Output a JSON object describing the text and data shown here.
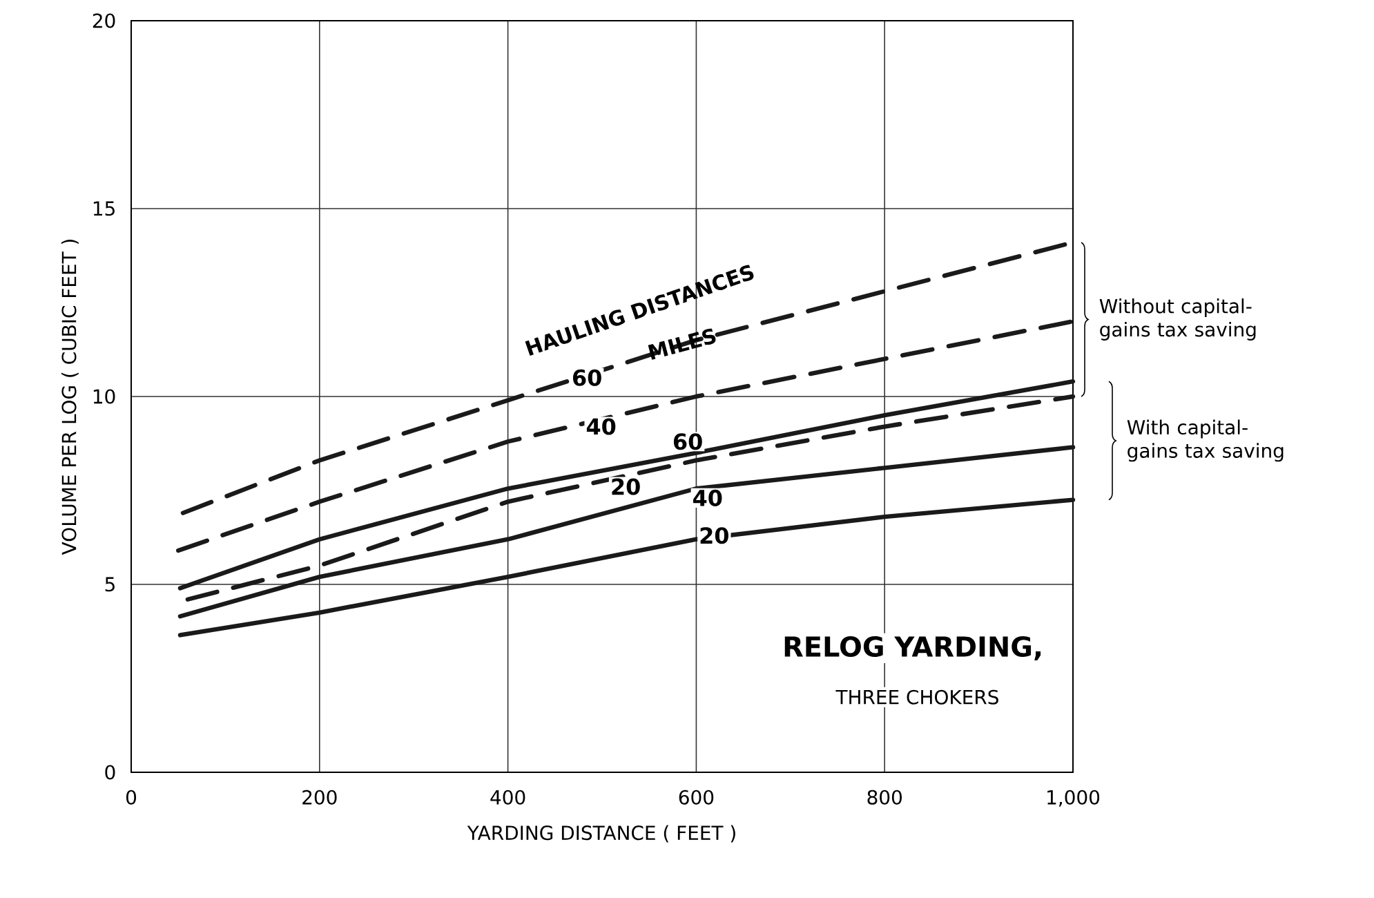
{
  "chart_data": {
    "type": "line",
    "title": "RELOG YARDING,",
    "subtitle": "THREE CHOKERS",
    "xlabel": "YARDING DISTANCE    ( FEET )",
    "ylabel": "VOLUME PER LOG    ( CUBIC FEET )",
    "xlim": [
      0,
      1000
    ],
    "ylim": [
      0,
      20
    ],
    "xticks": [
      0,
      200,
      400,
      600,
      800,
      {
        "value": 1000,
        "label": "1,000"
      }
    ],
    "yticks": [
      0,
      5,
      10,
      15,
      20
    ],
    "grid": true,
    "marker": "none",
    "series": [
      {
        "color": "#1a1a1a",
        "line_style": "dashed",
        "x": [
          55,
          200,
          400,
          600,
          800,
          1000
        ],
        "values": [
          6.9,
          8.3,
          9.9,
          11.5,
          12.8,
          14.1
        ]
      },
      {
        "color": "#1a1a1a",
        "line_style": "dashed",
        "x": [
          50,
          200,
          400,
          600,
          800,
          1000
        ],
        "values": [
          5.9,
          7.2,
          8.8,
          10.0,
          11.0,
          12.0
        ]
      },
      {
        "color": "#1a1a1a",
        "line_style": "dashed",
        "x": [
          60,
          200,
          400,
          600,
          800,
          1000
        ],
        "values": [
          4.6,
          5.5,
          7.2,
          8.3,
          9.2,
          10.0
        ]
      },
      {
        "color": "#1a1a1a",
        "line_style": "solid",
        "x": [
          52,
          200,
          400,
          600,
          800,
          1000
        ],
        "values": [
          4.9,
          6.2,
          7.55,
          8.5,
          9.5,
          10.4
        ]
      },
      {
        "color": "#1a1a1a",
        "line_style": "solid",
        "x": [
          52,
          200,
          400,
          600,
          800,
          1000
        ],
        "values": [
          4.15,
          5.2,
          6.2,
          7.55,
          8.1,
          8.65
        ]
      },
      {
        "color": "#1a1a1a",
        "line_style": "solid",
        "x": [
          52,
          200,
          400,
          600,
          800,
          1000
        ],
        "values": [
          3.65,
          4.25,
          5.2,
          6.2,
          6.8,
          7.25
        ]
      }
    ],
    "annotations": [
      "HAULING DISTANCES",
      "MILES",
      "Without capital-gains tax saving",
      "With capital-gains tax saving",
      {
        "text": "60",
        "x": 484,
        "y": 10.5
      },
      {
        "text": "40",
        "x": 499,
        "y": 9.2
      },
      {
        "text": "20",
        "x": 525,
        "y": 7.6
      },
      {
        "text": "60",
        "x": 591,
        "y": 8.8
      },
      {
        "text": "40",
        "x": 612,
        "y": 7.3
      },
      {
        "text": "20",
        "x": 619,
        "y": 6.3
      }
    ]
  }
}
